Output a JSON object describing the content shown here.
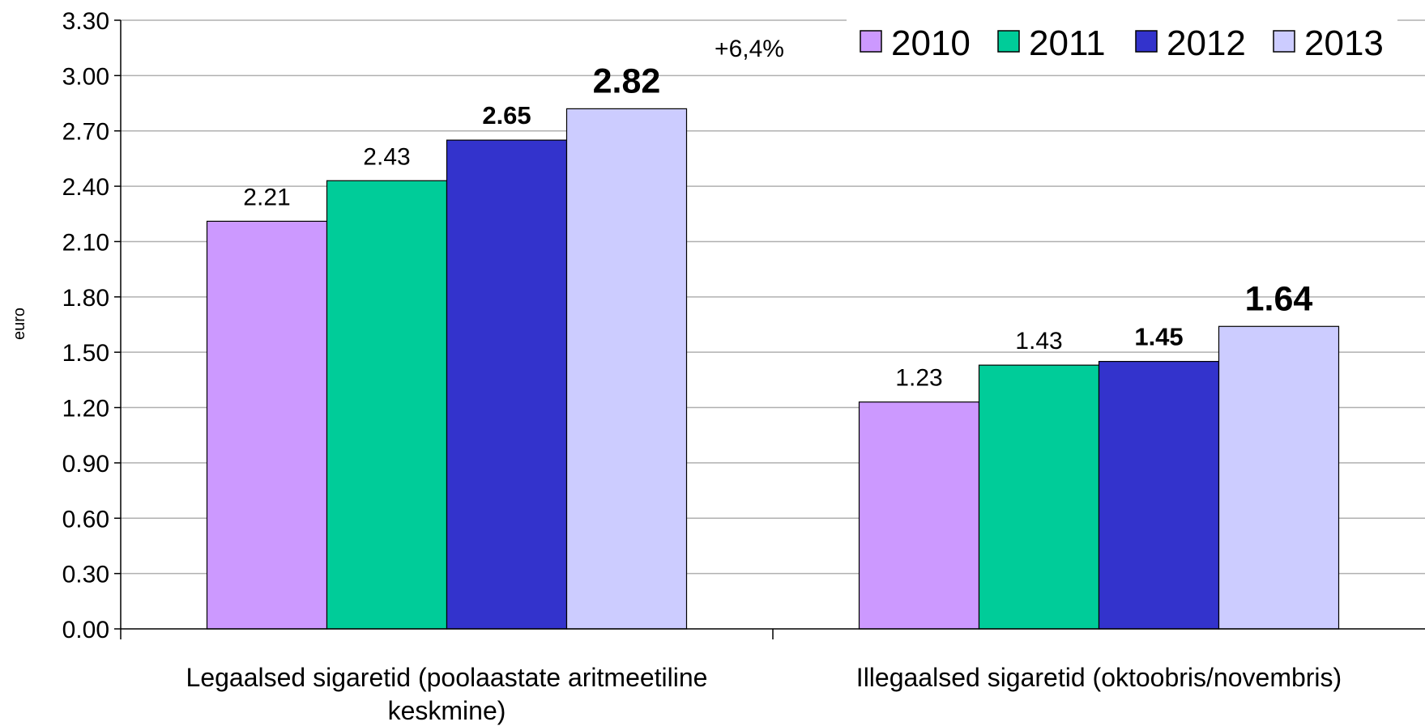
{
  "chart_data": {
    "type": "bar",
    "ylabel": "euro",
    "ylim": [
      0,
      3.3
    ],
    "yticks": [
      "0.00",
      "0.30",
      "0.60",
      "0.90",
      "1.20",
      "1.50",
      "1.80",
      "2.10",
      "2.40",
      "2.70",
      "3.00",
      "3.30"
    ],
    "grid": true,
    "legend_position": "top-right",
    "categories": [
      [
        "Legaalsed sigaretid (poolaastate aritmeetiline",
        "keskmine)"
      ],
      [
        "Illegaalsed sigaretid (oktoobris/novembris)"
      ]
    ],
    "series": [
      {
        "name": "2010",
        "color": "#cc99ff",
        "values": [
          2.21,
          1.23
        ],
        "labels": [
          "2.21",
          "1.23"
        ],
        "label_style": "normal"
      },
      {
        "name": "2011",
        "color": "#00cc99",
        "values": [
          2.43,
          1.43
        ],
        "labels": [
          "2.43",
          "1.43"
        ],
        "label_style": "normal"
      },
      {
        "name": "2012",
        "color": "#3333cc",
        "values": [
          2.65,
          1.45
        ],
        "labels": [
          "2.65",
          "1.45"
        ],
        "label_style": "bold"
      },
      {
        "name": "2013",
        "color": "#ccccff",
        "values": [
          2.82,
          1.64
        ],
        "labels": [
          "2.82",
          "1.64"
        ],
        "label_style": "bold-large"
      }
    ],
    "annotations": [
      "+6,4%"
    ]
  }
}
